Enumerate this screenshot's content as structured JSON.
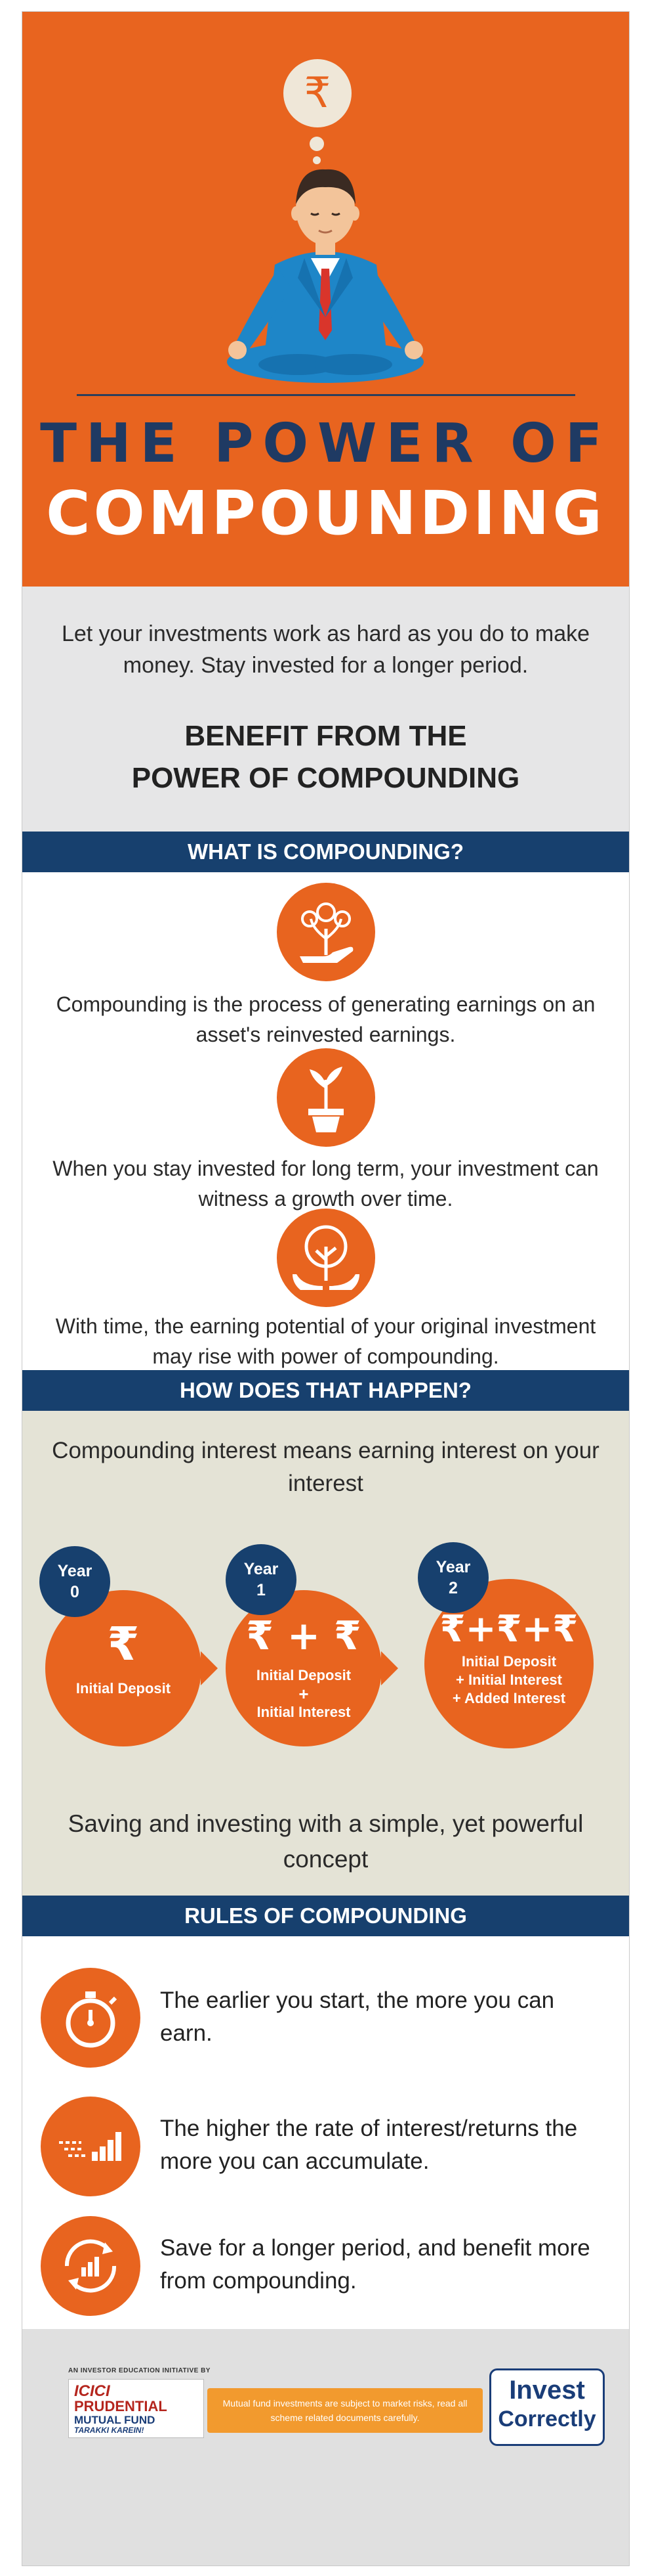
{
  "hero": {
    "symbol": "₹",
    "title_line1": "THE POWER OF",
    "title_line2": "COMPOUNDING"
  },
  "intro": {
    "text": "Let your investments work as hard as you do to make money. Stay invested for a longer period.",
    "heading_line1": "BENEFIT FROM THE",
    "heading_line2": "POWER OF COMPOUNDING"
  },
  "what": {
    "heading": "WHAT IS COMPOUNDING?",
    "items": [
      {
        "icon": "money-plant-hand-icon",
        "text": "Compounding is the process of generating earnings on an asset's reinvested earnings."
      },
      {
        "icon": "plant-pot-icon",
        "text": "When you stay invested for long term, your investment can witness a growth over time."
      },
      {
        "icon": "tree-hands-icon",
        "text": "With time, the earning potential of your original investment may rise with power of compounding."
      }
    ]
  },
  "how": {
    "heading": "HOW DOES THAT HAPPEN?",
    "subtitle": "Compounding interest means earning interest on your interest",
    "stages": [
      {
        "year": "Year",
        "num": "0",
        "symbols": "₹",
        "l1": "Initial Deposit",
        "l2": "",
        "l3": ""
      },
      {
        "year": "Year",
        "num": "1",
        "symbols": "₹ + ₹",
        "l1": "Initial Deposit",
        "l2": "+",
        "l3": "Initial Interest"
      },
      {
        "year": "Year",
        "num": "2",
        "symbols": "₹+₹+₹",
        "l1": "Initial Deposit",
        "l2": "+ Initial Interest",
        "l3": "+ Added Interest"
      }
    ],
    "footer": "Saving and investing with a simple, yet powerful concept"
  },
  "rules": {
    "heading": "RULES OF COMPOUNDING",
    "items": [
      {
        "icon": "stopwatch-icon",
        "text": "The earlier you start, the more you can earn."
      },
      {
        "icon": "speed-bars-icon",
        "text": "The higher the rate of interest/returns the more you can accumulate."
      },
      {
        "icon": "growth-cycle-icon",
        "text": "Save for a longer period, and benefit more from compounding."
      }
    ]
  },
  "footer": {
    "tagline": "AN INVESTOR EDUCATION INITIATIVE BY",
    "brand1": "ICICI",
    "brand2": "PRUDENTIAL",
    "brand3": "MUTUAL FUND",
    "brand4": "TARAKKI KAREIN!",
    "disclaimer": "Mutual fund investments are subject to market risks, read all scheme related documents carefully.",
    "invest1": "Invest",
    "invest2": "Correctly"
  },
  "colors": {
    "orange": "#e8641f",
    "navy": "#17406e",
    "light_gray": "#e6e6e7",
    "beige": "#e4e3d6"
  }
}
